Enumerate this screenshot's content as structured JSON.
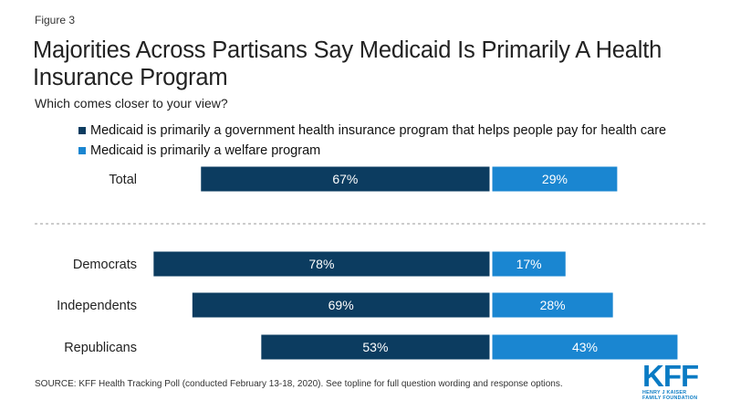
{
  "figure_label": "Figure 3",
  "colors": {
    "primary": "#0c3c60",
    "secondary": "#1a86d1"
  },
  "chart_data": {
    "type": "bar",
    "orientation": "horizontal-diverging",
    "title": "Majorities Across Partisans Say Medicaid Is Primarily A Health Insurance Program",
    "subtitle": "Which comes closer to your view?",
    "categories": [
      "Total",
      "Democrats",
      "Independents",
      "Republicans"
    ],
    "series": [
      {
        "name": "Medicaid is primarily a government health insurance program that helps people pay for health care",
        "values": [
          67,
          78,
          69,
          53
        ],
        "labels": [
          "67%",
          "78%",
          "69%",
          "53%"
        ],
        "color": "#0c3c60"
      },
      {
        "name": "Medicaid is primarily a welfare program",
        "values": [
          29,
          17,
          28,
          43
        ],
        "labels": [
          "29%",
          "17%",
          "28%",
          "43%"
        ],
        "color": "#1a86d1"
      }
    ],
    "unit": "%",
    "legend": "top-left",
    "grid": false,
    "separator_after_category": "Total"
  },
  "source": "SOURCE: KFF Health Tracking Poll (conducted February 13-18, 2020). See topline for full question wording and response options.",
  "logo": {
    "mark": "KFF",
    "line1": "HENRY J KAISER",
    "line2": "FAMILY FOUNDATION"
  }
}
